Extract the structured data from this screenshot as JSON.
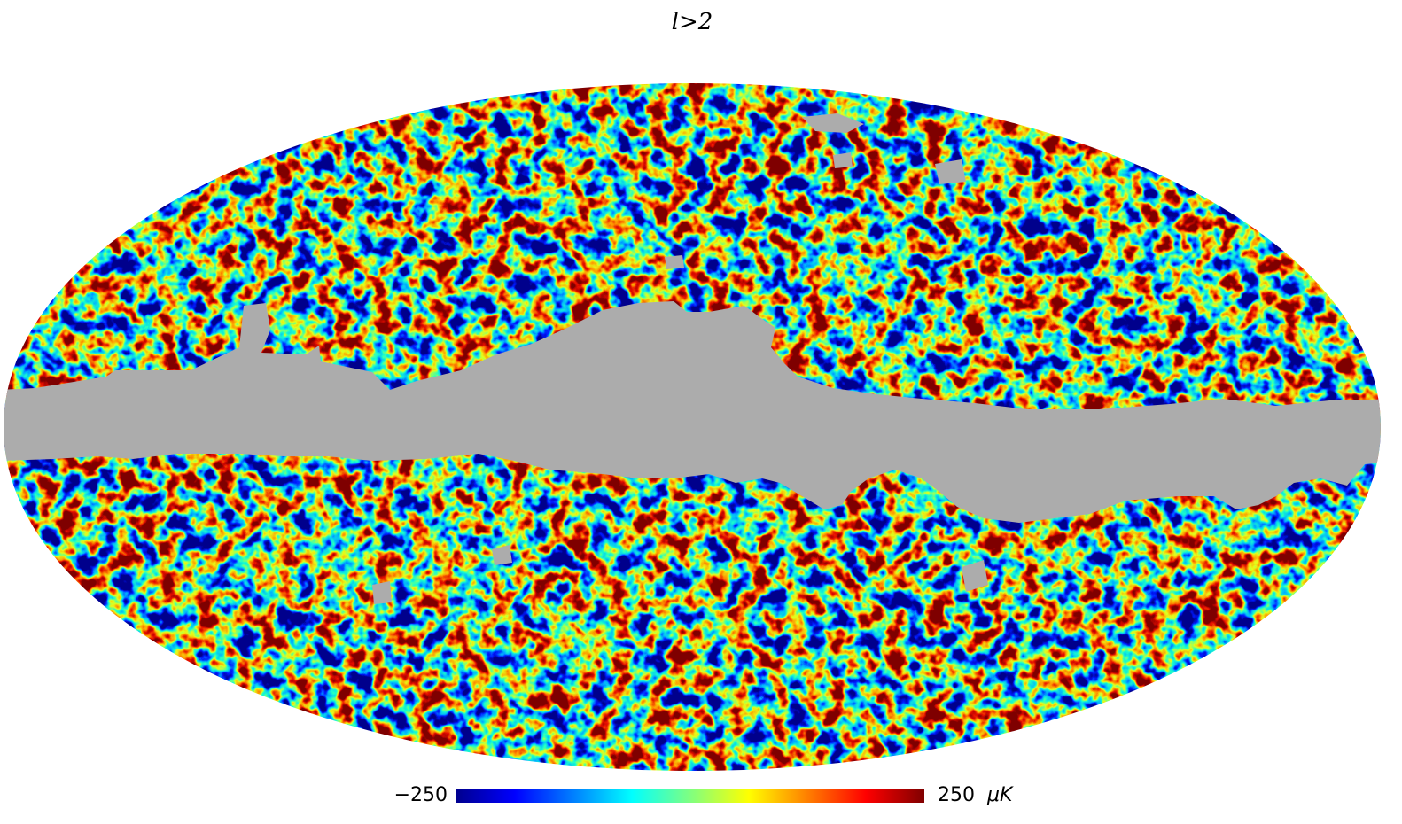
{
  "title": "l>2",
  "colorbar": {
    "min": {
      "value": -250,
      "label": "−250"
    },
    "max": 250,
    "unit": "μK"
  }
}
